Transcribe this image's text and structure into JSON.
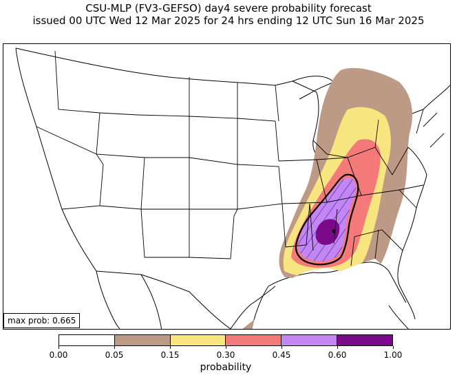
{
  "title": {
    "line1": "CSU-MLP (FV3-GEFSO) day4 severe probability forecast",
    "line2": "issued 00 UTC Wed 12 Mar 2025 for 24 hrs ending 12 UTC Sun 16 Mar 2025"
  },
  "max_prob": {
    "label": "max prob: 0.665"
  },
  "colorbar": {
    "label": "probability",
    "ticks": [
      "0.00",
      "0.05",
      "0.15",
      "0.30",
      "0.45",
      "0.60",
      "1.00"
    ],
    "colors": [
      "#ffffff",
      "#bd9a85",
      "#f7e57f",
      "#f47a7a",
      "#c586f5",
      "#7b0a8a"
    ]
  },
  "hatch": {
    "meaning": "significant severe area",
    "color": "#1f1f7a"
  },
  "legend_symbol": "map-icon"
}
